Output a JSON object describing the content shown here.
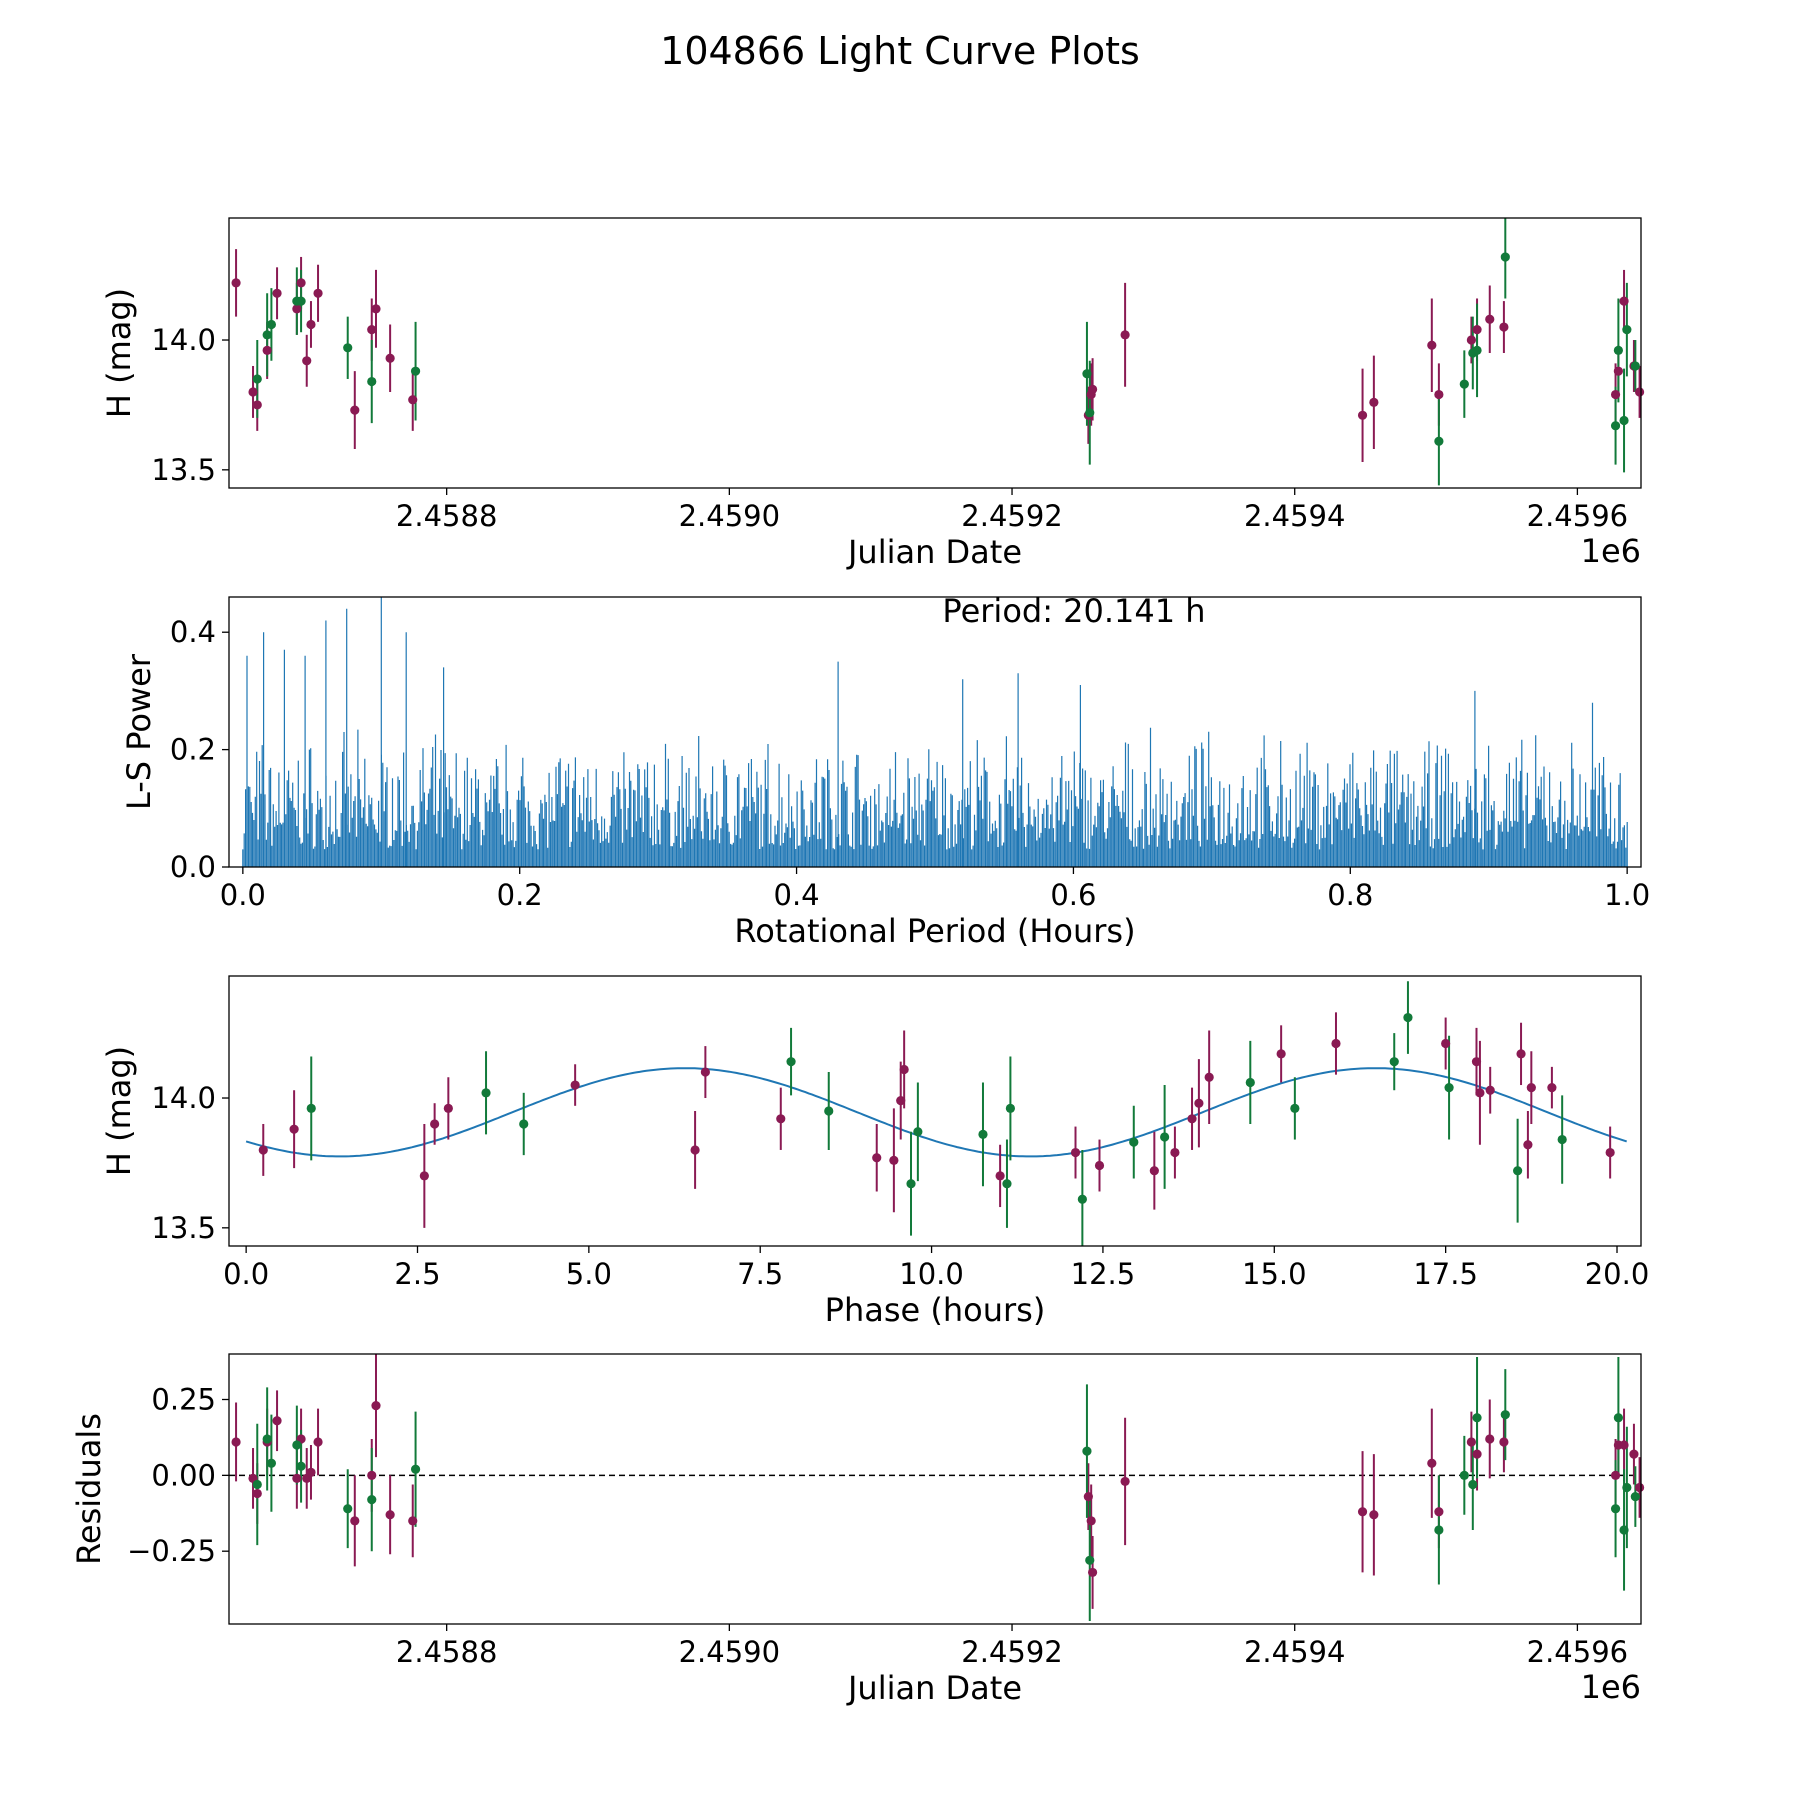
{
  "figure": {
    "title": "104866 Light Curve Plots"
  },
  "colors": {
    "band_a": "#8a1a53",
    "band_b": "#127a3a",
    "periodogram": "#1f77b4",
    "model": "#1f77b4",
    "axis": "#000000",
    "zero_line": "#000000"
  },
  "chart_data": [
    {
      "id": "lightcurve",
      "type": "scatter",
      "xlabel": "Julian Date",
      "ylabel": "H (mag)",
      "x_offset_label": "1e6",
      "xlim": [
        2458646,
        2459645
      ],
      "ylim": [
        13.43,
        14.47
      ],
      "xticks": [
        2458800,
        2459000,
        2459200,
        2459400,
        2459600
      ],
      "xtick_labels": [
        "2.4588",
        "2.4590",
        "2.4592",
        "2.4594",
        "2.4596"
      ],
      "yticks": [
        13.5,
        14.0
      ],
      "ytick_labels": [
        "13.5",
        "14.0"
      ],
      "series": [
        {
          "name": "band_a",
          "points": [
            [
              2458651,
              14.22,
              0.13
            ],
            [
              2458663,
              13.8,
              0.1
            ],
            [
              2458666,
              13.75,
              0.1
            ],
            [
              2458673,
              13.96,
              0.11
            ],
            [
              2458680,
              14.18,
              0.1
            ],
            [
              2458694,
              14.12,
              0.1
            ],
            [
              2458697,
              14.22,
              0.1
            ],
            [
              2458701,
              13.92,
              0.1
            ],
            [
              2458704,
              14.06,
              0.09
            ],
            [
              2458709,
              14.18,
              0.11
            ],
            [
              2458735,
              13.73,
              0.15
            ],
            [
              2458747,
              14.04,
              0.12
            ],
            [
              2458750,
              14.12,
              0.15
            ],
            [
              2458760,
              13.93,
              0.13
            ],
            [
              2458776,
              13.77,
              0.12
            ],
            [
              2459254,
              13.71,
              0.11
            ],
            [
              2459256,
              13.79,
              0.12
            ],
            [
              2459257,
              13.81,
              0.12
            ],
            [
              2459280,
              14.02,
              0.2
            ],
            [
              2459448,
              13.71,
              0.18
            ],
            [
              2459456,
              13.76,
              0.18
            ],
            [
              2459497,
              13.98,
              0.18
            ],
            [
              2459502,
              13.79,
              0.12
            ],
            [
              2459525,
              14.0,
              0.09
            ],
            [
              2459529,
              14.04,
              0.12
            ],
            [
              2459538,
              14.08,
              0.13
            ],
            [
              2459548,
              14.05,
              0.1
            ],
            [
              2459627,
              13.79,
              0.12
            ],
            [
              2459629,
              13.88,
              0.1
            ],
            [
              2459633,
              14.15,
              0.12
            ],
            [
              2459640,
              13.9,
              0.1
            ],
            [
              2459644,
              13.8,
              0.1
            ]
          ]
        },
        {
          "name": "band_b",
          "points": [
            [
              2458666,
              13.85,
              0.15
            ],
            [
              2458673,
              14.02,
              0.16
            ],
            [
              2458676,
              14.06,
              0.14
            ],
            [
              2458694,
              14.15,
              0.13
            ],
            [
              2458697,
              14.15,
              0.12
            ],
            [
              2458730,
              13.97,
              0.12
            ],
            [
              2458747,
              13.84,
              0.16
            ],
            [
              2458778,
              13.88,
              0.19
            ],
            [
              2459253,
              13.87,
              0.2
            ],
            [
              2459255,
              13.72,
              0.2
            ],
            [
              2459502,
              13.61,
              0.17
            ],
            [
              2459520,
              13.83,
              0.13
            ],
            [
              2459526,
              13.95,
              0.14
            ],
            [
              2459529,
              13.96,
              0.18
            ],
            [
              2459549,
              14.32,
              0.16
            ],
            [
              2459627,
              13.67,
              0.15
            ],
            [
              2459629,
              13.96,
              0.2
            ],
            [
              2459633,
              13.69,
              0.2
            ],
            [
              2459635,
              14.04,
              0.18
            ],
            [
              2459641,
              13.9,
              0.1
            ]
          ]
        }
      ]
    },
    {
      "id": "periodogram",
      "type": "line",
      "xlabel": "Rotational Period (Hours)",
      "ylabel": "L-S Power",
      "annotation": "Period: 20.141 h",
      "xlim": [
        -0.01,
        1.01
      ],
      "ylim": [
        0,
        0.46
      ],
      "xticks": [
        0.0,
        0.2,
        0.4,
        0.6,
        0.8,
        1.0
      ],
      "xtick_labels": [
        "0.0",
        "0.2",
        "0.4",
        "0.6",
        "0.8",
        "1.0"
      ],
      "yticks": [
        0.0,
        0.2,
        0.4
      ],
      "ytick_labels": [
        "0.0",
        "0.2",
        "0.4"
      ],
      "x_range": [
        0.0,
        1.0
      ],
      "num_samples": 1000,
      "base_power": 0.03,
      "typical_peak": 0.16,
      "tall_peaks": [
        [
          0.003,
          0.36
        ],
        [
          0.015,
          0.4
        ],
        [
          0.03,
          0.37
        ],
        [
          0.045,
          0.36
        ],
        [
          0.06,
          0.42
        ],
        [
          0.075,
          0.44
        ],
        [
          0.1,
          0.46
        ],
        [
          0.118,
          0.4
        ],
        [
          0.145,
          0.34
        ],
        [
          0.43,
          0.35
        ],
        [
          0.52,
          0.32
        ],
        [
          0.56,
          0.33
        ],
        [
          0.605,
          0.31
        ],
        [
          0.89,
          0.3
        ],
        [
          0.975,
          0.28
        ]
      ]
    },
    {
      "id": "phased",
      "type": "scatter",
      "xlabel": "Phase (hours)",
      "ylabel": "H (mag)",
      "xlim": [
        -0.25,
        20.35
      ],
      "ylim": [
        13.43,
        14.47
      ],
      "xticks": [
        0,
        2.5,
        5,
        7.5,
        10,
        12.5,
        15,
        17.5,
        20
      ],
      "xtick_labels": [
        "0.0",
        "2.5",
        "5.0",
        "7.5",
        "10.0",
        "12.5",
        "15.0",
        "17.5",
        "20.0"
      ],
      "yticks": [
        13.5,
        14.0
      ],
      "ytick_labels": [
        "13.5",
        "14.0"
      ],
      "model": {
        "type": "sinusoid",
        "mean": 13.945,
        "amplitude": 0.17,
        "period": 10.07,
        "peak_phase": 6.4,
        "x_range": [
          0.0,
          20.141
        ]
      },
      "series": [
        {
          "name": "band_a",
          "points": [
            [
              0.25,
              13.8,
              0.1
            ],
            [
              0.7,
              13.88,
              0.15
            ],
            [
              2.6,
              13.7,
              0.2
            ],
            [
              2.75,
              13.9,
              0.08
            ],
            [
              2.95,
              13.96,
              0.12
            ],
            [
              4.8,
              14.05,
              0.08
            ],
            [
              6.55,
              13.8,
              0.15
            ],
            [
              6.7,
              14.1,
              0.1
            ],
            [
              7.8,
              13.92,
              0.12
            ],
            [
              9.2,
              13.77,
              0.13
            ],
            [
              9.45,
              13.76,
              0.2
            ],
            [
              9.55,
              13.99,
              0.15
            ],
            [
              9.6,
              14.11,
              0.15
            ],
            [
              11.0,
              13.7,
              0.12
            ],
            [
              12.1,
              13.79,
              0.1
            ],
            [
              12.45,
              13.74,
              0.1
            ],
            [
              13.25,
              13.72,
              0.15
            ],
            [
              13.55,
              13.79,
              0.1
            ],
            [
              13.8,
              13.92,
              0.12
            ],
            [
              13.9,
              13.98,
              0.17
            ],
            [
              14.05,
              14.08,
              0.18
            ],
            [
              15.1,
              14.17,
              0.11
            ],
            [
              15.9,
              14.21,
              0.12
            ],
            [
              17.5,
              14.21,
              0.1
            ],
            [
              17.95,
              14.14,
              0.13
            ],
            [
              18.0,
              14.02,
              0.2
            ],
            [
              18.15,
              14.03,
              0.09
            ],
            [
              18.6,
              14.17,
              0.12
            ],
            [
              18.7,
              13.82,
              0.13
            ],
            [
              18.75,
              14.04,
              0.14
            ],
            [
              19.05,
              14.04,
              0.08
            ],
            [
              19.9,
              13.79,
              0.1
            ]
          ]
        },
        {
          "name": "band_b",
          "points": [
            [
              0.95,
              13.96,
              0.2
            ],
            [
              3.5,
              14.02,
              0.16
            ],
            [
              4.05,
              13.9,
              0.12
            ],
            [
              7.95,
              14.14,
              0.13
            ],
            [
              8.5,
              13.95,
              0.15
            ],
            [
              9.7,
              13.67,
              0.2
            ],
            [
              9.8,
              13.87,
              0.19
            ],
            [
              10.75,
              13.86,
              0.2
            ],
            [
              11.1,
              13.67,
              0.17
            ],
            [
              11.15,
              13.96,
              0.2
            ],
            [
              12.2,
              13.61,
              0.19
            ],
            [
              12.95,
              13.83,
              0.14
            ],
            [
              13.4,
              13.85,
              0.2
            ],
            [
              14.65,
              14.06,
              0.16
            ],
            [
              15.3,
              13.96,
              0.12
            ],
            [
              16.75,
              14.14,
              0.11
            ],
            [
              16.95,
              14.31,
              0.14
            ],
            [
              17.55,
              14.04,
              0.2
            ],
            [
              18.55,
              13.72,
              0.2
            ],
            [
              19.2,
              13.84,
              0.17
            ]
          ]
        }
      ]
    },
    {
      "id": "residuals",
      "type": "scatter",
      "xlabel": "Julian Date",
      "ylabel": "Residuals",
      "x_offset_label": "1e6",
      "xlim": [
        2458646,
        2459645
      ],
      "ylim": [
        -0.49,
        0.4
      ],
      "xticks": [
        2458800,
        2459000,
        2459200,
        2459400,
        2459600
      ],
      "xtick_labels": [
        "2.4588",
        "2.4590",
        "2.4592",
        "2.4594",
        "2.4596"
      ],
      "yticks": [
        -0.25,
        0.0,
        0.25
      ],
      "ytick_labels": [
        "−0.25",
        "0.00",
        "0.25"
      ],
      "zero_line": true,
      "series": [
        {
          "name": "band_a",
          "points": [
            [
              2458651,
              0.11,
              0.13
            ],
            [
              2458663,
              -0.01,
              0.1
            ],
            [
              2458666,
              -0.06,
              0.1
            ],
            [
              2458673,
              0.11,
              0.11
            ],
            [
              2458680,
              0.18,
              0.1
            ],
            [
              2458694,
              -0.01,
              0.1
            ],
            [
              2458697,
              0.12,
              0.1
            ],
            [
              2458701,
              -0.01,
              0.1
            ],
            [
              2458704,
              0.01,
              0.09
            ],
            [
              2458709,
              0.11,
              0.11
            ],
            [
              2458735,
              -0.15,
              0.15
            ],
            [
              2458747,
              0.0,
              0.12
            ],
            [
              2458750,
              0.23,
              0.17
            ],
            [
              2458760,
              -0.13,
              0.13
            ],
            [
              2458776,
              -0.15,
              0.12
            ],
            [
              2459254,
              -0.07,
              0.11
            ],
            [
              2459256,
              -0.15,
              0.12
            ],
            [
              2459257,
              -0.32,
              0.12
            ],
            [
              2459280,
              -0.02,
              0.21
            ],
            [
              2459448,
              -0.12,
              0.2
            ],
            [
              2459456,
              -0.13,
              0.2
            ],
            [
              2459497,
              0.04,
              0.18
            ],
            [
              2459502,
              -0.12,
              0.12
            ],
            [
              2459525,
              0.11,
              0.1
            ],
            [
              2459529,
              0.07,
              0.12
            ],
            [
              2459538,
              0.12,
              0.13
            ],
            [
              2459548,
              0.11,
              0.1
            ],
            [
              2459627,
              0.0,
              0.12
            ],
            [
              2459629,
              0.1,
              0.1
            ],
            [
              2459633,
              0.1,
              0.12
            ],
            [
              2459640,
              0.07,
              0.1
            ],
            [
              2459644,
              -0.04,
              0.1
            ]
          ]
        },
        {
          "name": "band_b",
          "points": [
            [
              2458666,
              -0.03,
              0.2
            ],
            [
              2458673,
              0.12,
              0.17
            ],
            [
              2458676,
              0.04,
              0.16
            ],
            [
              2458694,
              0.1,
              0.13
            ],
            [
              2458697,
              0.03,
              0.12
            ],
            [
              2458730,
              -0.11,
              0.13
            ],
            [
              2458747,
              -0.08,
              0.17
            ],
            [
              2458778,
              0.02,
              0.19
            ],
            [
              2459253,
              0.08,
              0.22
            ],
            [
              2459255,
              -0.28,
              0.2
            ],
            [
              2459502,
              -0.18,
              0.18
            ],
            [
              2459520,
              0.0,
              0.13
            ],
            [
              2459526,
              -0.03,
              0.15
            ],
            [
              2459529,
              0.19,
              0.2
            ],
            [
              2459549,
              0.2,
              0.15
            ],
            [
              2459627,
              -0.11,
              0.16
            ],
            [
              2459629,
              0.19,
              0.2
            ],
            [
              2459633,
              -0.18,
              0.2
            ],
            [
              2459635,
              -0.04,
              0.2
            ],
            [
              2459641,
              -0.07,
              0.1
            ]
          ]
        }
      ]
    }
  ]
}
